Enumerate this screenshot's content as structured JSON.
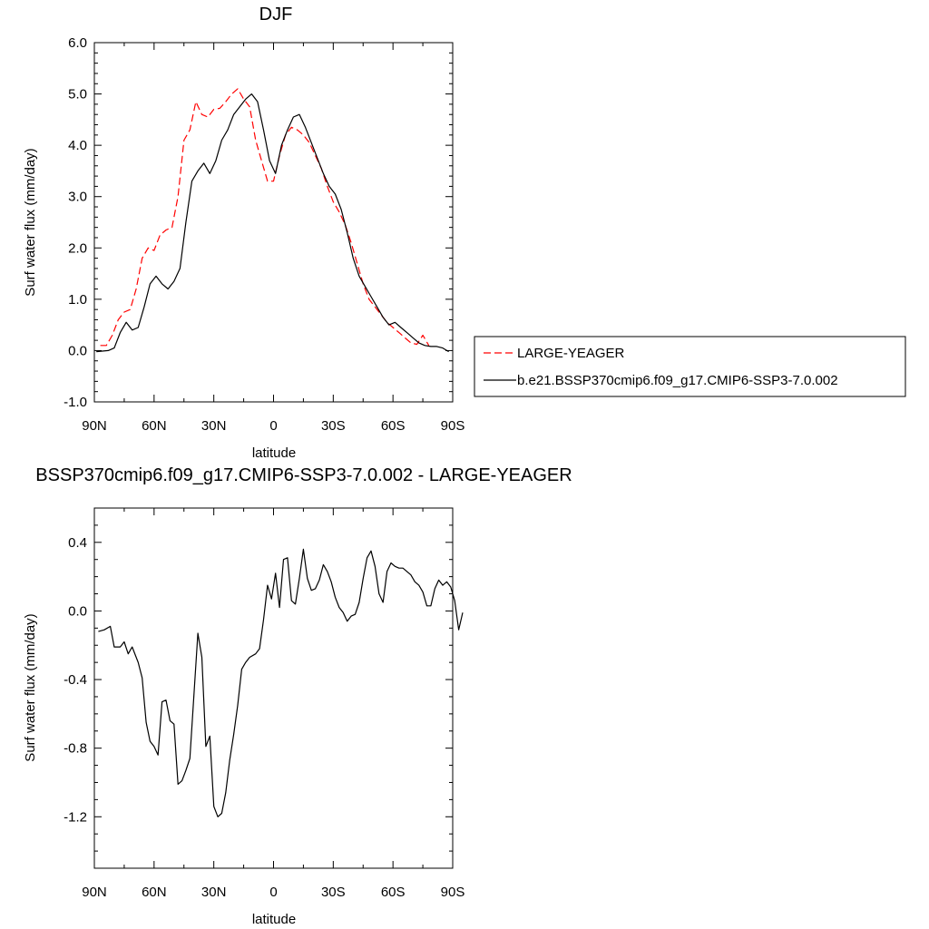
{
  "chart_data": [
    {
      "type": "line",
      "title": "DJF",
      "xlabel": "latitude",
      "ylabel": "Surf water flux (mm/day)",
      "xlim": [
        90,
        -90
      ],
      "ylim": [
        -1.0,
        6.0
      ],
      "x_ticks": [
        90,
        60,
        30,
        0,
        -30,
        -60,
        -90
      ],
      "x_tick_labels": [
        "90N",
        "60N",
        "30N",
        "0",
        "30S",
        "60S",
        "90S"
      ],
      "y_ticks": [
        -1.0,
        0.0,
        1.0,
        2.0,
        3.0,
        4.0,
        5.0,
        6.0
      ],
      "y_tick_labels": [
        "-1.0",
        "0.0",
        "1.0",
        "2.0",
        "3.0",
        "4.0",
        "5.0",
        "6.0"
      ],
      "grid": false,
      "legend_position": "right",
      "series": [
        {
          "name": "LARGE-YEAGER",
          "color": "#ff0000",
          "dash": "dashed",
          "points": [
            [
              87,
              0.1
            ],
            [
              84,
              0.1
            ],
            [
              81,
              0.3
            ],
            [
              78,
              0.6
            ],
            [
              75,
              0.75
            ],
            [
              72,
              0.8
            ],
            [
              69,
              1.2
            ],
            [
              66,
              1.8
            ],
            [
              63,
              2.0
            ],
            [
              60,
              1.95
            ],
            [
              57,
              2.25
            ],
            [
              54,
              2.35
            ],
            [
              51,
              2.4
            ],
            [
              48,
              3.0
            ],
            [
              45,
              4.1
            ],
            [
              42,
              4.3
            ],
            [
              39,
              4.85
            ],
            [
              36,
              4.6
            ],
            [
              33,
              4.55
            ],
            [
              30,
              4.7
            ],
            [
              27,
              4.72
            ],
            [
              24,
              4.85
            ],
            [
              21,
              5.0
            ],
            [
              18,
              5.1
            ],
            [
              15,
              4.9
            ],
            [
              12,
              4.75
            ],
            [
              9,
              4.1
            ],
            [
              6,
              3.7
            ],
            [
              3,
              3.3
            ],
            [
              0,
              3.3
            ],
            [
              -3,
              3.8
            ],
            [
              -6,
              4.2
            ],
            [
              -9,
              4.35
            ],
            [
              -12,
              4.3
            ],
            [
              -15,
              4.2
            ],
            [
              -18,
              4.05
            ],
            [
              -21,
              3.8
            ],
            [
              -24,
              3.55
            ],
            [
              -27,
              3.2
            ],
            [
              -30,
              2.9
            ],
            [
              -33,
              2.7
            ],
            [
              -36,
              2.45
            ],
            [
              -39,
              2.1
            ],
            [
              -42,
              1.7
            ],
            [
              -45,
              1.3
            ],
            [
              -48,
              1.0
            ],
            [
              -51,
              0.85
            ],
            [
              -54,
              0.7
            ],
            [
              -57,
              0.55
            ],
            [
              -60,
              0.45
            ],
            [
              -63,
              0.35
            ],
            [
              -66,
              0.25
            ],
            [
              -69,
              0.15
            ],
            [
              -72,
              0.12
            ],
            [
              -75,
              0.3
            ],
            [
              -78,
              0.1
            ]
          ]
        },
        {
          "name": "b.e21.BSSP370cmip6.f09_g17.CMIP6-SSP3-7.0.002",
          "color": "#000000",
          "dash": "solid",
          "points": [
            [
              89,
              -0.02
            ],
            [
              86,
              -0.01
            ],
            [
              83,
              0.0
            ],
            [
              80,
              0.05
            ],
            [
              77,
              0.35
            ],
            [
              74,
              0.55
            ],
            [
              71,
              0.4
            ],
            [
              68,
              0.45
            ],
            [
              65,
              0.85
            ],
            [
              62,
              1.3
            ],
            [
              59,
              1.45
            ],
            [
              56,
              1.3
            ],
            [
              53,
              1.2
            ],
            [
              50,
              1.35
            ],
            [
              47,
              1.6
            ],
            [
              44,
              2.5
            ],
            [
              41,
              3.3
            ],
            [
              38,
              3.5
            ],
            [
              35,
              3.65
            ],
            [
              32,
              3.45
            ],
            [
              29,
              3.7
            ],
            [
              26,
              4.1
            ],
            [
              23,
              4.3
            ],
            [
              20,
              4.6
            ],
            [
              17,
              4.75
            ],
            [
              14,
              4.9
            ],
            [
              11,
              5.0
            ],
            [
              8,
              4.85
            ],
            [
              5,
              4.3
            ],
            [
              2,
              3.7
            ],
            [
              -1,
              3.45
            ],
            [
              -4,
              4.0
            ],
            [
              -7,
              4.3
            ],
            [
              -10,
              4.55
            ],
            [
              -13,
              4.6
            ],
            [
              -16,
              4.35
            ],
            [
              -19,
              4.05
            ],
            [
              -22,
              3.75
            ],
            [
              -25,
              3.45
            ],
            [
              -28,
              3.2
            ],
            [
              -31,
              3.05
            ],
            [
              -34,
              2.75
            ],
            [
              -37,
              2.3
            ],
            [
              -40,
              1.8
            ],
            [
              -43,
              1.45
            ],
            [
              -46,
              1.25
            ],
            [
              -49,
              1.05
            ],
            [
              -52,
              0.85
            ],
            [
              -55,
              0.65
            ],
            [
              -58,
              0.5
            ],
            [
              -61,
              0.55
            ],
            [
              -64,
              0.45
            ],
            [
              -67,
              0.35
            ],
            [
              -70,
              0.25
            ],
            [
              -73,
              0.15
            ],
            [
              -76,
              0.1
            ],
            [
              -79,
              0.08
            ],
            [
              -82,
              0.08
            ],
            [
              -85,
              0.05
            ],
            [
              -88,
              -0.02
            ]
          ]
        }
      ]
    },
    {
      "type": "line",
      "title": "BSSP370cmip6.f09_g17.CMIP6-SSP3-7.0.002 - LARGE-YEAGER",
      "xlabel": "latitude",
      "ylabel": "Surf water flux (mm/day)",
      "xlim": [
        90,
        -90
      ],
      "ylim": [
        -1.5,
        0.6
      ],
      "x_ticks": [
        90,
        60,
        30,
        0,
        -30,
        -60,
        -90
      ],
      "x_tick_labels": [
        "90N",
        "60N",
        "30N",
        "0",
        "30S",
        "60S",
        "90S"
      ],
      "y_ticks": [
        -1.2,
        -0.8,
        -0.4,
        0.0,
        0.4
      ],
      "y_tick_labels": [
        "-1.2",
        "-0.8",
        "-0.4",
        "0.0",
        "0.4"
      ],
      "grid": false,
      "series": [
        {
          "color": "#000000",
          "dash": "solid",
          "points": [
            [
              88,
              -0.12
            ],
            [
              85,
              -0.11
            ],
            [
              82,
              -0.09
            ],
            [
              80,
              -0.21
            ],
            [
              77,
              -0.21
            ],
            [
              75,
              -0.18
            ],
            [
              73,
              -0.25
            ],
            [
              71,
              -0.21
            ],
            [
              68,
              -0.3
            ],
            [
              66,
              -0.39
            ],
            [
              64,
              -0.65
            ],
            [
              62,
              -0.76
            ],
            [
              60,
              -0.79
            ],
            [
              58,
              -0.84
            ],
            [
              56,
              -0.53
            ],
            [
              54,
              -0.52
            ],
            [
              52,
              -0.64
            ],
            [
              50,
              -0.66
            ],
            [
              48,
              -1.01
            ],
            [
              46,
              -0.99
            ],
            [
              44,
              -0.93
            ],
            [
              42,
              -0.86
            ],
            [
              38,
              -0.13
            ],
            [
              36,
              -0.27
            ],
            [
              34,
              -0.79
            ],
            [
              32,
              -0.73
            ],
            [
              30,
              -1.14
            ],
            [
              28,
              -1.2
            ],
            [
              26,
              -1.18
            ],
            [
              24,
              -1.06
            ],
            [
              22,
              -0.87
            ],
            [
              20,
              -0.72
            ],
            [
              18,
              -0.55
            ],
            [
              16,
              -0.34
            ],
            [
              14,
              -0.3
            ],
            [
              12,
              -0.27
            ],
            [
              9,
              -0.25
            ],
            [
              7,
              -0.22
            ],
            [
              5,
              -0.05
            ],
            [
              3,
              0.15
            ],
            [
              1,
              0.07
            ],
            [
              -1,
              0.22
            ],
            [
              -3,
              0.02
            ],
            [
              -5,
              0.3
            ],
            [
              -7,
              0.31
            ],
            [
              -9,
              0.06
            ],
            [
              -11,
              0.04
            ],
            [
              -13,
              0.19
            ],
            [
              -15,
              0.36
            ],
            [
              -17,
              0.19
            ],
            [
              -19,
              0.12
            ],
            [
              -21,
              0.13
            ],
            [
              -23,
              0.18
            ],
            [
              -25,
              0.27
            ],
            [
              -27,
              0.23
            ],
            [
              -29,
              0.17
            ],
            [
              -31,
              0.08
            ],
            [
              -33,
              0.02
            ],
            [
              -35,
              -0.01
            ],
            [
              -37,
              -0.06
            ],
            [
              -39,
              -0.03
            ],
            [
              -41,
              -0.02
            ],
            [
              -43,
              0.05
            ],
            [
              -45,
              0.19
            ],
            [
              -47,
              0.31
            ],
            [
              -49,
              0.35
            ],
            [
              -51,
              0.26
            ],
            [
              -53,
              0.1
            ],
            [
              -55,
              0.05
            ],
            [
              -57,
              0.23
            ],
            [
              -59,
              0.28
            ],
            [
              -61,
              0.26
            ],
            [
              -63,
              0.25
            ],
            [
              -65,
              0.25
            ],
            [
              -67,
              0.23
            ],
            [
              -69,
              0.21
            ],
            [
              -71,
              0.17
            ],
            [
              -73,
              0.15
            ],
            [
              -75,
              0.11
            ],
            [
              -77,
              0.03
            ],
            [
              -79,
              0.03
            ],
            [
              -81,
              0.13
            ],
            [
              -83,
              0.18
            ],
            [
              -85,
              0.15
            ],
            [
              -87,
              0.17
            ],
            [
              -89,
              0.14
            ],
            [
              -91,
              0.06
            ],
            [
              -93,
              -0.11
            ],
            [
              -95,
              -0.01
            ]
          ]
        }
      ]
    }
  ]
}
